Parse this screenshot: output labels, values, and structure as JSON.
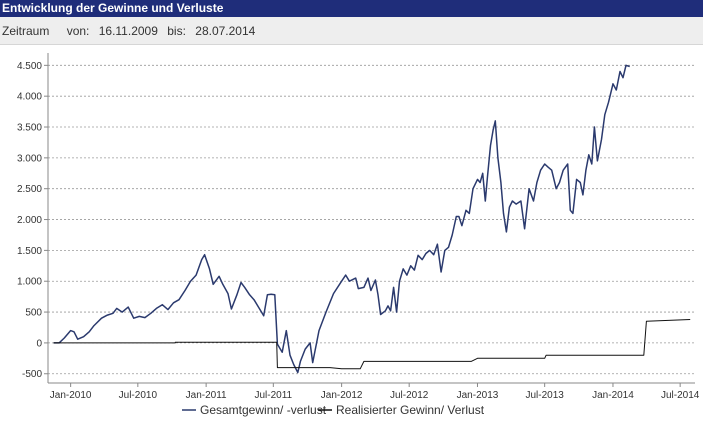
{
  "header": {
    "title": "Entwicklung der Gewinne und Verluste",
    "period_label": "Zeitraum",
    "from_label": "von:",
    "from_date": "16.11.2009",
    "to_label": "bis:",
    "to_date": "28.07.2014"
  },
  "chart_data": {
    "type": "line",
    "title": "",
    "xlabel": "",
    "ylabel": "",
    "grid": true,
    "legend_position": "bottom",
    "xlim": [
      "2009-11-01",
      "2014-08-10"
    ],
    "ylim": [
      -650,
      4700
    ],
    "y_ticks": [
      -500,
      0,
      500,
      1000,
      1500,
      2000,
      2500,
      3000,
      3500,
      4000,
      4500
    ],
    "y_tick_labels": [
      "-500",
      "0",
      "500",
      "1.000",
      "1.500",
      "2.000",
      "2.500",
      "3.000",
      "3.500",
      "4.000",
      "4.500"
    ],
    "x_ticks": [
      "2010-01-01",
      "2010-07-01",
      "2011-01-01",
      "2011-07-01",
      "2012-01-01",
      "2012-07-01",
      "2013-01-01",
      "2013-07-01",
      "2014-01-01",
      "2014-07-01"
    ],
    "x_tick_labels": [
      "Jan-2010",
      "Jul-2010",
      "Jan-2011",
      "Jul-2011",
      "Jan-2012",
      "Jul-2012",
      "Jan-2013",
      "Jul-2013",
      "Jan-2014",
      "Jul-2014"
    ],
    "series": [
      {
        "name": "Gesamtgewinn/ -verlust",
        "color": "#2b3a6e",
        "points": [
          [
            "2009-11-16",
            0
          ],
          [
            "2009-12-01",
            0
          ],
          [
            "2009-12-15",
            80
          ],
          [
            "2010-01-01",
            200
          ],
          [
            "2010-01-10",
            180
          ],
          [
            "2010-01-20",
            60
          ],
          [
            "2010-02-05",
            100
          ],
          [
            "2010-02-20",
            180
          ],
          [
            "2010-03-05",
            280
          ],
          [
            "2010-03-25",
            400
          ],
          [
            "2010-04-10",
            450
          ],
          [
            "2010-04-25",
            480
          ],
          [
            "2010-05-05",
            560
          ],
          [
            "2010-05-20",
            500
          ],
          [
            "2010-06-05",
            580
          ],
          [
            "2010-06-20",
            400
          ],
          [
            "2010-07-05",
            430
          ],
          [
            "2010-07-20",
            410
          ],
          [
            "2010-08-05",
            480
          ],
          [
            "2010-08-20",
            560
          ],
          [
            "2010-09-05",
            620
          ],
          [
            "2010-09-20",
            540
          ],
          [
            "2010-10-05",
            650
          ],
          [
            "2010-10-20",
            700
          ],
          [
            "2010-11-05",
            850
          ],
          [
            "2010-11-20",
            1000
          ],
          [
            "2010-12-05",
            1100
          ],
          [
            "2010-12-20",
            1350
          ],
          [
            "2010-12-28",
            1430
          ],
          [
            "2011-01-10",
            1200
          ],
          [
            "2011-01-20",
            950
          ],
          [
            "2011-02-05",
            1080
          ],
          [
            "2011-02-15",
            950
          ],
          [
            "2011-03-01",
            800
          ],
          [
            "2011-03-10",
            550
          ],
          [
            "2011-03-25",
            780
          ],
          [
            "2011-04-05",
            980
          ],
          [
            "2011-04-15",
            900
          ],
          [
            "2011-04-28",
            780
          ],
          [
            "2011-05-10",
            700
          ],
          [
            "2011-05-22",
            580
          ],
          [
            "2011-06-05",
            440
          ],
          [
            "2011-06-15",
            780
          ],
          [
            "2011-06-25",
            790
          ],
          [
            "2011-07-05",
            780
          ],
          [
            "2011-07-12",
            -20
          ],
          [
            "2011-07-25",
            -150
          ],
          [
            "2011-08-05",
            200
          ],
          [
            "2011-08-15",
            -200
          ],
          [
            "2011-08-25",
            -350
          ],
          [
            "2011-09-05",
            -480
          ],
          [
            "2011-09-12",
            -300
          ],
          [
            "2011-09-25",
            -100
          ],
          [
            "2011-10-08",
            0
          ],
          [
            "2011-10-15",
            -320
          ],
          [
            "2011-11-01",
            200
          ],
          [
            "2011-11-20",
            500
          ],
          [
            "2011-12-10",
            800
          ],
          [
            "2012-01-01",
            1000
          ],
          [
            "2012-01-12",
            1100
          ],
          [
            "2012-01-22",
            1000
          ],
          [
            "2012-02-08",
            1050
          ],
          [
            "2012-02-15",
            880
          ],
          [
            "2012-03-01",
            900
          ],
          [
            "2012-03-12",
            1050
          ],
          [
            "2012-03-20",
            850
          ],
          [
            "2012-04-01",
            1020
          ],
          [
            "2012-04-08",
            780
          ],
          [
            "2012-04-15",
            460
          ],
          [
            "2012-04-28",
            520
          ],
          [
            "2012-05-05",
            600
          ],
          [
            "2012-05-12",
            520
          ],
          [
            "2012-05-20",
            900
          ],
          [
            "2012-05-28",
            500
          ],
          [
            "2012-06-05",
            1000
          ],
          [
            "2012-06-15",
            1200
          ],
          [
            "2012-06-25",
            1100
          ],
          [
            "2012-07-05",
            1250
          ],
          [
            "2012-07-15",
            1180
          ],
          [
            "2012-07-25",
            1420
          ],
          [
            "2012-08-05",
            1350
          ],
          [
            "2012-08-15",
            1450
          ],
          [
            "2012-08-25",
            1500
          ],
          [
            "2012-09-05",
            1430
          ],
          [
            "2012-09-15",
            1600
          ],
          [
            "2012-09-25",
            1150
          ],
          [
            "2012-10-05",
            1500
          ],
          [
            "2012-10-15",
            1550
          ],
          [
            "2012-10-25",
            1750
          ],
          [
            "2012-11-05",
            2050
          ],
          [
            "2012-11-12",
            2050
          ],
          [
            "2012-11-20",
            1900
          ],
          [
            "2012-12-01",
            2150
          ],
          [
            "2012-12-10",
            2100
          ],
          [
            "2012-12-20",
            2500
          ],
          [
            "2013-01-01",
            2650
          ],
          [
            "2013-01-08",
            2600
          ],
          [
            "2013-01-15",
            2750
          ],
          [
            "2013-01-22",
            2300
          ],
          [
            "2013-01-28",
            2700
          ],
          [
            "2013-02-05",
            3200
          ],
          [
            "2013-02-12",
            3450
          ],
          [
            "2013-02-18",
            3600
          ],
          [
            "2013-02-25",
            3000
          ],
          [
            "2013-03-05",
            2600
          ],
          [
            "2013-03-12",
            2100
          ],
          [
            "2013-03-20",
            1800
          ],
          [
            "2013-03-28",
            2200
          ],
          [
            "2013-04-05",
            2300
          ],
          [
            "2013-04-15",
            2250
          ],
          [
            "2013-04-28",
            2300
          ],
          [
            "2013-05-08",
            1850
          ],
          [
            "2013-05-20",
            2500
          ],
          [
            "2013-06-01",
            2300
          ],
          [
            "2013-06-10",
            2600
          ],
          [
            "2013-06-20",
            2800
          ],
          [
            "2013-07-01",
            2900
          ],
          [
            "2013-07-10",
            2850
          ],
          [
            "2013-07-20",
            2800
          ],
          [
            "2013-08-01",
            2500
          ],
          [
            "2013-08-10",
            2600
          ],
          [
            "2013-08-20",
            2800
          ],
          [
            "2013-09-01",
            2900
          ],
          [
            "2013-09-08",
            2150
          ],
          [
            "2013-09-15",
            2100
          ],
          [
            "2013-09-25",
            2650
          ],
          [
            "2013-10-05",
            2600
          ],
          [
            "2013-10-12",
            2400
          ],
          [
            "2013-10-20",
            2800
          ],
          [
            "2013-10-28",
            3050
          ],
          [
            "2013-11-05",
            2900
          ],
          [
            "2013-11-12",
            3500
          ],
          [
            "2013-11-20",
            2950
          ],
          [
            "2013-12-01",
            3300
          ],
          [
            "2013-12-10",
            3700
          ],
          [
            "2013-12-20",
            3900
          ],
          [
            "2014-01-01",
            4200
          ],
          [
            "2014-01-10",
            4100
          ],
          [
            "2014-01-20",
            4400
          ],
          [
            "2014-01-28",
            4300
          ],
          [
            "2014-02-05",
            4500
          ],
          [
            "2014-02-15",
            4480
          ]
        ]
      },
      {
        "name": "Realisierter Gewinn/ Verlust",
        "color": "#111111",
        "points": [
          [
            "2009-11-16",
            0
          ],
          [
            "2010-10-10",
            0
          ],
          [
            "2010-10-10",
            10
          ],
          [
            "2011-07-10",
            10
          ],
          [
            "2011-07-12",
            -400
          ],
          [
            "2011-12-01",
            -400
          ],
          [
            "2012-01-01",
            -420
          ],
          [
            "2012-02-20",
            -420
          ],
          [
            "2012-03-01",
            -300
          ],
          [
            "2012-12-15",
            -300
          ],
          [
            "2013-01-01",
            -250
          ],
          [
            "2013-07-01",
            -250
          ],
          [
            "2013-07-05",
            -200
          ],
          [
            "2014-03-25",
            -200
          ],
          [
            "2014-04-01",
            350
          ],
          [
            "2014-07-28",
            380
          ]
        ]
      }
    ]
  }
}
